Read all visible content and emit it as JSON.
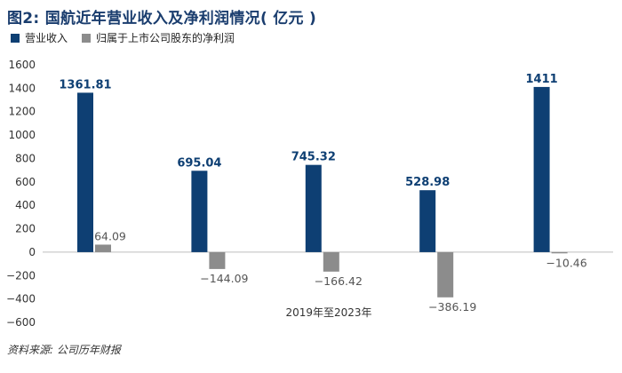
{
  "header": {
    "title": "图2: 国航近年营业收入及净利润情况( 亿元 )"
  },
  "legend": {
    "items": [
      {
        "label": "营业收入",
        "color": "#0e3f73"
      },
      {
        "label": "归属于上市公司股东的净利润",
        "color": "#8c8c8c"
      }
    ]
  },
  "footer": {
    "source": "资料来源: 公司历年财报"
  },
  "chart_data": {
    "type": "bar",
    "xlabel": "2019年至2023年",
    "categories": [
      "",
      "",
      "",
      "",
      ""
    ],
    "series": [
      {
        "name": "营业收入",
        "color": "#0e3f73",
        "values": [
          1361.81,
          695.04,
          745.32,
          528.98,
          1411
        ]
      },
      {
        "name": "归属于上市公司股东的净利润",
        "color": "#8c8c8c",
        "values": [
          64.09,
          -144.09,
          -166.42,
          -386.19,
          -10.46
        ]
      }
    ],
    "data_labels": [
      [
        "1361.81",
        "695.04",
        "745.32",
        "528.98",
        "1411"
      ],
      [
        "64.09",
        "−144.09",
        "−166.42",
        "−386.19",
        "−10.46"
      ]
    ],
    "ylim": [
      -600,
      1600
    ],
    "yticks": [
      -600,
      -400,
      -200,
      0,
      200,
      400,
      600,
      800,
      1000,
      1200,
      1400,
      1600
    ],
    "ytick_labels": [
      "−600",
      "−400",
      "−200",
      "0",
      "200",
      "400",
      "600",
      "800",
      "1000",
      "1200",
      "1400",
      "1600"
    ],
    "grid": false,
    "legend_position": "top-left"
  }
}
